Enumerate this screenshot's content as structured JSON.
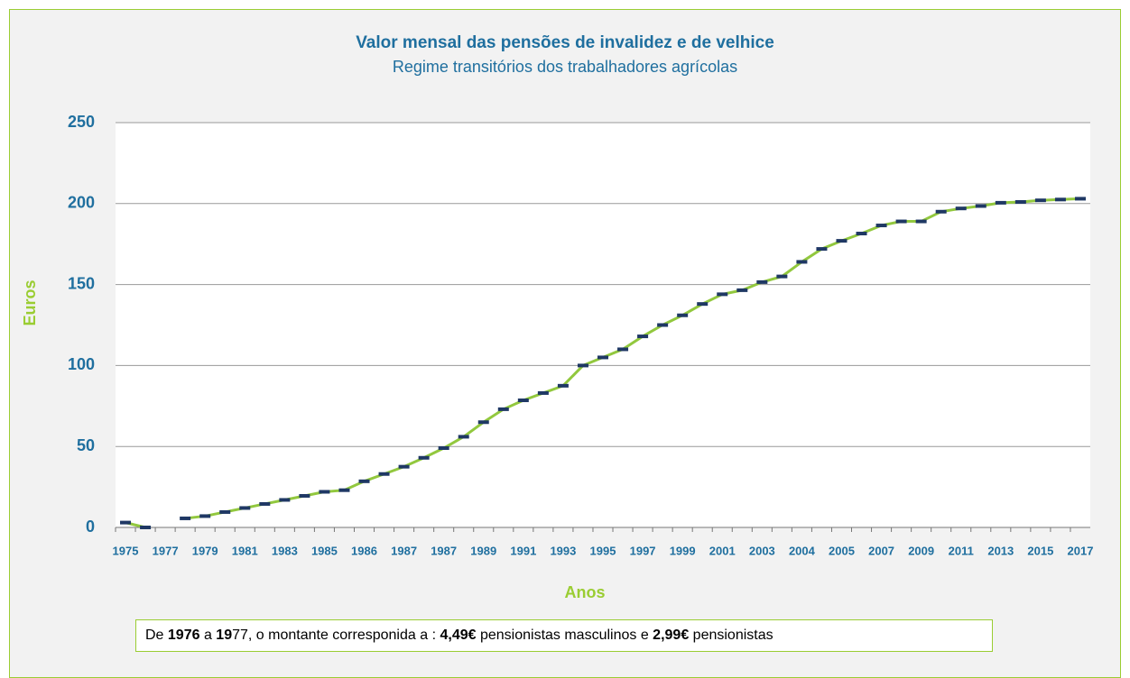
{
  "chart_data": {
    "type": "line",
    "title": "Valor mensal das pensões de invalidez e de velhice",
    "subtitle": "Regime transitórios dos trabalhadores agrícolas",
    "y_label": "Euros",
    "x_label": "Anos",
    "categories": [
      "1975",
      null,
      "1977",
      null,
      "1979",
      null,
      "1981",
      null,
      "1983",
      null,
      "1985",
      null,
      "1986",
      null,
      "1987",
      null,
      "1987",
      null,
      "1989",
      null,
      "1991",
      null,
      "1993",
      null,
      "1995",
      null,
      "1997",
      null,
      "1999",
      null,
      "2001",
      null,
      "2003",
      null,
      "2004",
      null,
      "2005",
      null,
      "2007",
      null,
      "2009",
      null,
      "2011",
      null,
      "2013",
      null,
      "2015",
      null,
      "2017"
    ],
    "series": [
      {
        "color": "#92c83e",
        "marker_color": "#1f3864",
        "values": [
          3,
          0,
          null,
          5.6,
          7,
          9.5,
          12,
          14.5,
          17,
          19.5,
          22,
          23,
          28.5,
          33,
          37.5,
          43,
          49,
          56,
          65,
          73,
          78.5,
          83,
          87.5,
          100,
          105,
          110,
          118,
          125,
          131,
          138,
          144,
          146.5,
          151.5,
          155,
          164,
          172,
          177,
          181.5,
          186.5,
          189,
          189,
          195,
          197,
          198.5,
          200.5,
          201,
          202,
          202.5,
          203
        ]
      }
    ],
    "ylim": [
      0,
      250
    ],
    "yticks": [
      0,
      50,
      100,
      150,
      200,
      250
    ],
    "grid": true,
    "note": [
      {
        "text": "De ",
        "bold": false
      },
      {
        "text": "1976",
        "bold": true
      },
      {
        "text": " a ",
        "bold": false
      },
      {
        "text": "19",
        "bold": true
      },
      {
        "text": "77, o montante corresponida a : ",
        "bold": false
      },
      {
        "text": "4,49€",
        "bold": true
      },
      {
        "text": " pensionistas masculinos e ",
        "bold": false
      },
      {
        "text": "2,99€",
        "bold": true
      },
      {
        "text": " pensionistas",
        "bold": false
      }
    ]
  }
}
